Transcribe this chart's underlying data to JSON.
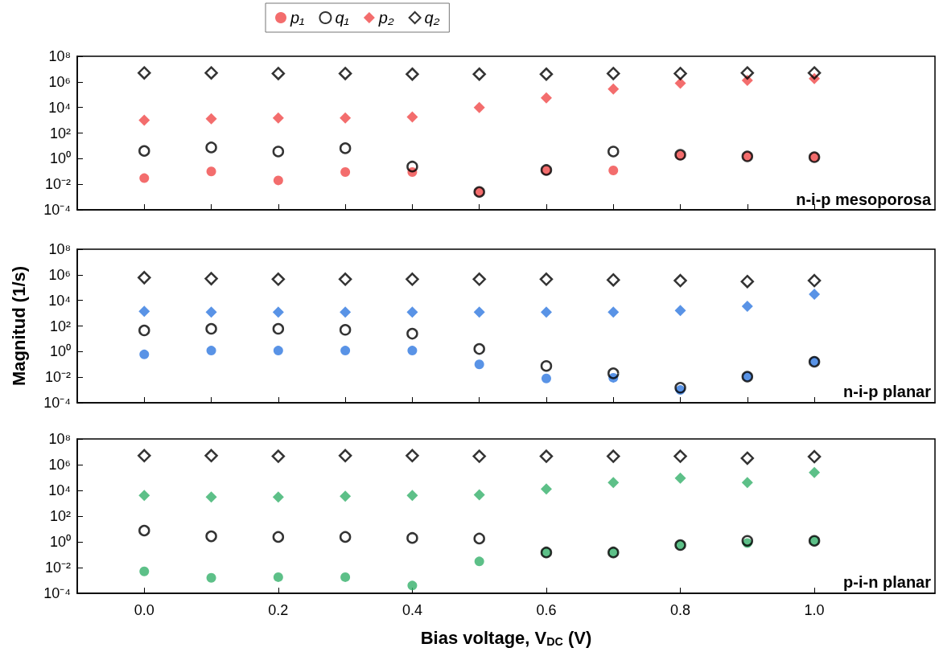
{
  "chart_data": [
    {
      "type": "scatter",
      "legend": "top",
      "tick_labels": "y",
      "annotations": [
        "n-i-p mesoporosa"
      ],
      "log": "y",
      "xlim": [
        -0.1,
        1.18
      ],
      "ylim": [
        0.0001,
        100000000
      ],
      "yticks": [
        {
          "value": 0.0001,
          "label": "10⁻⁴"
        },
        {
          "value": 0.01,
          "label": "10⁻²"
        },
        {
          "value": 1,
          "label": "10⁰"
        },
        {
          "value": 100,
          "label": "10²"
        },
        {
          "value": 10000,
          "label": "10⁴"
        },
        {
          "value": 1000000,
          "label": "10⁶"
        },
        {
          "value": 100000000,
          "label": "10⁸"
        }
      ],
      "x": [
        0,
        0.1,
        0.2,
        0.3,
        0.4,
        0.5,
        0.6,
        0.7,
        0.8,
        0.9,
        1.0
      ],
      "series": [
        {
          "name": "p₁",
          "color": "#f04848",
          "marker": "circle",
          "values": [
            0.03,
            0.1,
            0.02,
            0.09,
            0.09,
            0.0025,
            0.12,
            0.12,
            1.8,
            1.5,
            1.3
          ]
        },
        {
          "name": "q₁",
          "color": "#000000",
          "marker": "circle",
          "values": [
            4,
            7.5,
            3.6,
            6.5,
            0.24,
            0.0025,
            0.13,
            3.6,
            2,
            1.5,
            1.3
          ]
        },
        {
          "name": "p₂",
          "color": "#f04848",
          "marker": "diamond",
          "values": [
            1000,
            1300,
            1500,
            1500,
            1800,
            10000,
            56000,
            280000,
            800000,
            1300000,
            1800000
          ]
        },
        {
          "name": "q₂",
          "color": "#000000",
          "marker": "diamond",
          "values": [
            5000000,
            5000000,
            4500000,
            4500000,
            4000000,
            4000000,
            4000000,
            4500000,
            4500000,
            5000000,
            5000000
          ]
        }
      ]
    },
    {
      "type": "scatter",
      "tick_labels": "y",
      "ylabel": "Magnitud (1/s)",
      "annotations": [
        "n-i-p planar"
      ],
      "log": "y",
      "xlim": [
        -0.1,
        1.18
      ],
      "ylim": [
        0.0001,
        100000000
      ],
      "yticks": [
        {
          "value": 0.0001,
          "label": "10⁻⁴"
        },
        {
          "value": 0.01,
          "label": "10⁻²"
        },
        {
          "value": 1,
          "label": "10⁰"
        },
        {
          "value": 100,
          "label": "10²"
        },
        {
          "value": 10000,
          "label": "10⁴"
        },
        {
          "value": 1000000,
          "label": "10⁶"
        },
        {
          "value": 100000000,
          "label": "10⁸"
        }
      ],
      "x": [
        0,
        0.1,
        0.2,
        0.3,
        0.4,
        0.5,
        0.6,
        0.7,
        0.8,
        0.9,
        1.0
      ],
      "series": [
        {
          "color": "#2f78e0",
          "marker": "circle",
          "values": [
            0.6,
            1.2,
            1.2,
            1.2,
            1.2,
            0.1,
            0.008,
            0.009,
            0.001,
            0.011,
            0.17
          ]
        },
        {
          "color": "#000000",
          "marker": "circle",
          "values": [
            45,
            60,
            60,
            50,
            25,
            1.6,
            0.075,
            0.02,
            0.0015,
            0.011,
            0.16
          ]
        },
        {
          "color": "#2f78e0",
          "marker": "diamond",
          "values": [
            1400,
            1200,
            1200,
            1200,
            1200,
            1200,
            1200,
            1200,
            1600,
            3500,
            30000
          ]
        },
        {
          "color": "#000000",
          "marker": "diamond",
          "values": [
            600000,
            500000,
            450000,
            450000,
            450000,
            450000,
            450000,
            400000,
            350000,
            300000,
            350000
          ]
        }
      ]
    },
    {
      "type": "scatter",
      "xlabel": "Bias voltage, V$_{DC}$ (V)",
      "annotations": [
        "p-i-n planar"
      ],
      "log": "y",
      "xlim": [
        -0.1,
        1.18
      ],
      "ylim": [
        0.0001,
        100000000
      ],
      "xticks": [
        {
          "value": 0,
          "label": "0.0"
        },
        0.2,
        0.4,
        0.6,
        0.8,
        {
          "value": 1,
          "label": "1.0"
        }
      ],
      "yticks": [
        {
          "value": 0.0001,
          "label": "10⁻⁴"
        },
        {
          "value": 0.01,
          "label": "10⁻²"
        },
        {
          "value": 1,
          "label": "10⁰"
        },
        {
          "value": 100,
          "label": "10²"
        },
        {
          "value": 10000,
          "label": "10⁴"
        },
        {
          "value": 1000000,
          "label": "10⁶"
        },
        {
          "value": 100000000,
          "label": "10⁸"
        }
      ],
      "x": [
        0,
        0.1,
        0.2,
        0.3,
        0.4,
        0.5,
        0.6,
        0.7,
        0.8,
        0.9,
        1.0
      ],
      "series": [
        {
          "color": "#35b06a",
          "marker": "circle",
          "values": [
            0.005,
            0.0016,
            0.0018,
            0.0018,
            0.0004,
            0.03,
            0.15,
            0.15,
            0.56,
            0.8,
            1.2
          ]
        },
        {
          "color": "#000000",
          "marker": "circle",
          "values": [
            7.5,
            2.7,
            2.4,
            2.4,
            2,
            1.8,
            0.15,
            0.15,
            0.56,
            1.2,
            1.2
          ]
        },
        {
          "color": "#35b06a",
          "marker": "diamond",
          "values": [
            4000,
            3000,
            3000,
            3500,
            4000,
            4500,
            13000,
            40000,
            90000,
            40000,
            250000
          ]
        },
        {
          "color": "#000000",
          "marker": "diamond",
          "values": [
            5000000,
            5000000,
            4500000,
            5000000,
            5000000,
            4500000,
            4500000,
            4500000,
            4500000,
            3200000,
            4200000
          ]
        }
      ]
    }
  ]
}
